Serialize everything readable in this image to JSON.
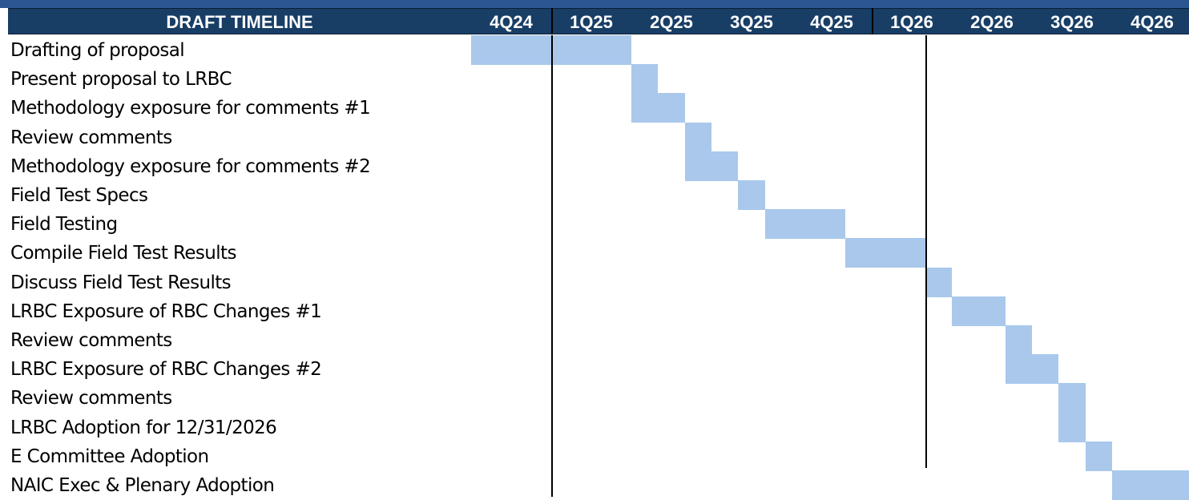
{
  "colors": {
    "header_bg": "#183e66",
    "top_strip": "#2b5691",
    "bar": "#a9c8ec"
  },
  "chart_data": {
    "type": "gantt",
    "title": "DRAFT TIMELINE",
    "quarters": [
      "4Q24",
      "1Q25",
      "2Q25",
      "3Q25",
      "4Q25",
      "1Q26",
      "2Q26",
      "3Q26",
      "4Q26"
    ],
    "tasks": [
      {
        "name": "Drafting of proposal",
        "start": 0.0,
        "end": 2.0
      },
      {
        "name": "Present proposal to LRBC",
        "start": 2.0,
        "end": 2.33
      },
      {
        "name": "Methodology exposure for comments #1",
        "start": 2.0,
        "end": 2.67
      },
      {
        "name": "Review comments",
        "start": 2.67,
        "end": 3.0
      },
      {
        "name": "Methodology exposure for comments #2",
        "start": 2.67,
        "end": 3.33
      },
      {
        "name": "Field Test Specs",
        "start": 3.33,
        "end": 3.67
      },
      {
        "name": "Field Testing",
        "start": 3.67,
        "end": 4.67
      },
      {
        "name": "Compile Field Test Results",
        "start": 4.67,
        "end": 5.67
      },
      {
        "name": "Discuss Field Test Results",
        "start": 5.67,
        "end": 6.0
      },
      {
        "name": "LRBC Exposure of RBC Changes #1",
        "start": 6.0,
        "end": 6.67
      },
      {
        "name": "Review comments",
        "start": 6.67,
        "end": 7.0
      },
      {
        "name": "LRBC Exposure of RBC Changes #2",
        "start": 6.67,
        "end": 7.33
      },
      {
        "name": "Review comments",
        "start": 7.33,
        "end": 7.67
      },
      {
        "name": "LRBC Adoption for 12/31/2026",
        "start": 7.33,
        "end": 7.67
      },
      {
        "name": "E Committee Adoption",
        "start": 7.67,
        "end": 8.0
      },
      {
        "name": "NAIC Exec & Plenary Adoption",
        "start": 8.0,
        "end": 9.0
      }
    ],
    "marker_lines": [
      {
        "quarter_boundary": 1
      },
      {
        "quarter_boundary": 5.67
      }
    ]
  }
}
